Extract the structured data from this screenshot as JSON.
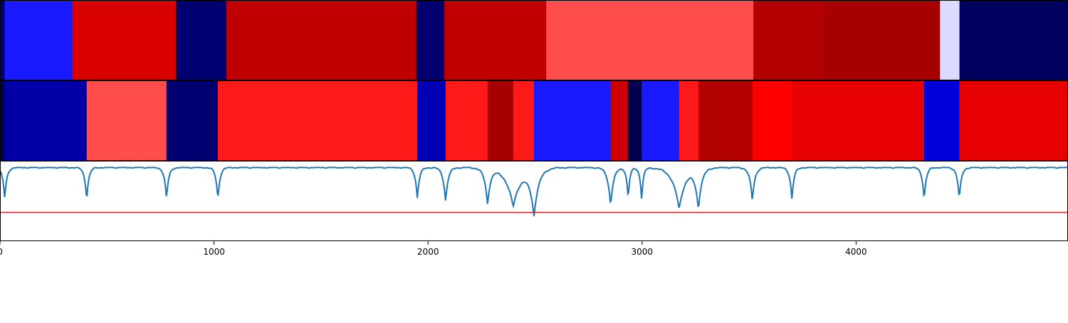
{
  "chart_data": {
    "type": "heatmap",
    "xlim": [
      0,
      4990
    ],
    "x_ticks": [
      0,
      1000,
      2000,
      3000,
      4000
    ],
    "x_tick_labels": [
      "0",
      "1000",
      "2000",
      "3000",
      "4000"
    ],
    "colormap": "seismic",
    "value_range": [
      -1,
      1
    ],
    "rows": [
      {
        "segments": [
          {
            "start": 0,
            "end": 22,
            "value": -0.85
          },
          {
            "start": 22,
            "end": 338,
            "value": -0.45
          },
          {
            "start": 338,
            "end": 822,
            "value": 0.65
          },
          {
            "start": 822,
            "end": 1057,
            "value": -0.9
          },
          {
            "start": 1057,
            "end": 1945,
            "value": 0.75
          },
          {
            "start": 1945,
            "end": 2075,
            "value": -0.9
          },
          {
            "start": 2075,
            "end": 2552,
            "value": 0.75
          },
          {
            "start": 2552,
            "end": 3520,
            "value": 0.35
          },
          {
            "start": 3520,
            "end": 3853,
            "value": 0.8
          },
          {
            "start": 3853,
            "end": 4392,
            "value": 0.85
          },
          {
            "start": 4392,
            "end": 4483,
            "value": -0.07
          },
          {
            "start": 4483,
            "end": 4990,
            "value": -0.95
          }
        ]
      },
      {
        "segments": [
          {
            "start": 0,
            "end": 22,
            "value": -0.95
          },
          {
            "start": 22,
            "end": 405,
            "value": -0.75
          },
          {
            "start": 405,
            "end": 778,
            "value": 0.35
          },
          {
            "start": 778,
            "end": 1018,
            "value": -0.9
          },
          {
            "start": 1018,
            "end": 1950,
            "value": 0.45
          },
          {
            "start": 1950,
            "end": 2082,
            "value": -0.7
          },
          {
            "start": 2082,
            "end": 2278,
            "value": 0.45
          },
          {
            "start": 2278,
            "end": 2398,
            "value": 0.85
          },
          {
            "start": 2398,
            "end": 2495,
            "value": 0.45
          },
          {
            "start": 2495,
            "end": 2853,
            "value": -0.45
          },
          {
            "start": 2853,
            "end": 2935,
            "value": 0.7
          },
          {
            "start": 2935,
            "end": 2998,
            "value": -1.0
          },
          {
            "start": 2998,
            "end": 3173,
            "value": -0.45
          },
          {
            "start": 3173,
            "end": 3263,
            "value": 0.45
          },
          {
            "start": 3263,
            "end": 3515,
            "value": 0.8
          },
          {
            "start": 3515,
            "end": 3700,
            "value": 0.5
          },
          {
            "start": 3700,
            "end": 4318,
            "value": 0.6
          },
          {
            "start": 4318,
            "end": 4482,
            "value": -0.6
          },
          {
            "start": 4482,
            "end": 4990,
            "value": 0.6
          }
        ]
      }
    ],
    "line_series": {
      "color": "#1f77b4",
      "ylim": [
        -1.1,
        0.1
      ],
      "boundaries": [
        22,
        405,
        778,
        1018,
        1950,
        2082,
        2278,
        2398,
        2495,
        2853,
        2935,
        2998,
        3173,
        3263,
        3515,
        3700,
        4318,
        4482
      ],
      "dip_depth": [
        -0.47,
        -0.48,
        -0.48,
        -0.48,
        -0.47,
        -0.51,
        -0.54,
        -0.58,
        -0.69,
        -0.57,
        -0.48,
        -0.48,
        -0.62,
        -0.6,
        -0.5,
        -0.48,
        -0.48,
        -0.48
      ],
      "dip_width": [
        10,
        10,
        10,
        10,
        10,
        12,
        14,
        35,
        22,
        14,
        8,
        8,
        30,
        16,
        12,
        10,
        10,
        10
      ]
    },
    "threshold_line": {
      "value": -0.67,
      "color": "#d62728"
    }
  }
}
